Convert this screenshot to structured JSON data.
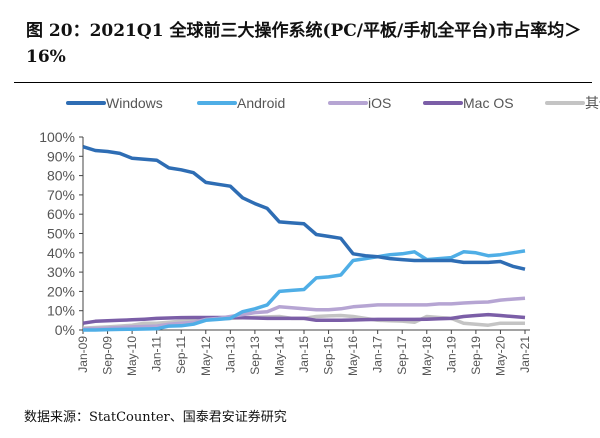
{
  "title": "图 20：2021Q1 全球前三大操作系统(PC/平板/手机全平台)市占率均＞16%",
  "source": "数据来源：StatCounter、国泰君安证券研究",
  "chart_data": {
    "type": "line",
    "title": "图 20：2021Q1 全球前三大操作系统(PC/平板/手机全平台)市占率均＞16%",
    "xlabel": "",
    "ylabel": "",
    "ylim": [
      0,
      100
    ],
    "yticks": [
      "0%",
      "10%",
      "20%",
      "30%",
      "40%",
      "50%",
      "60%",
      "70%",
      "80%",
      "90%",
      "100%"
    ],
    "xticks": [
      "Jan-09",
      "Sep-09",
      "May-10",
      "Jan-11",
      "Sep-11",
      "May-12",
      "Jan-13",
      "Sep-13",
      "May-14",
      "Jan-15",
      "Sep-15",
      "May-16",
      "Jan-17",
      "Sep-17",
      "May-18",
      "Jan-19",
      "Sep-19",
      "May-20",
      "Jan-21"
    ],
    "x": [
      "Jan-09",
      "May-09",
      "Sep-09",
      "Jan-10",
      "May-10",
      "Sep-10",
      "Jan-11",
      "May-11",
      "Sep-11",
      "Jan-12",
      "May-12",
      "Sep-12",
      "Jan-13",
      "May-13",
      "Sep-13",
      "Jan-14",
      "May-14",
      "Sep-14",
      "Jan-15",
      "May-15",
      "Sep-15",
      "Jan-16",
      "May-16",
      "Sep-16",
      "Jan-17",
      "May-17",
      "Sep-17",
      "Jan-18",
      "May-18",
      "Sep-18",
      "Jan-19",
      "May-19",
      "Sep-19",
      "Jan-20",
      "May-20",
      "Sep-20",
      "Jan-21"
    ],
    "legend": "top",
    "grid": false,
    "series": [
      {
        "name": "Windows",
        "color": "#2E6DB4",
        "values": [
          95,
          93,
          92.5,
          91.5,
          89,
          88.5,
          88,
          84,
          83,
          81.5,
          76.5,
          75.5,
          74.5,
          68.5,
          65.5,
          63,
          56,
          55.5,
          55,
          49.5,
          48.5,
          47.5,
          39.5,
          38.5,
          38,
          37,
          36.5,
          36,
          36,
          36,
          36,
          35,
          35,
          35,
          35.5,
          33,
          31.5
        ]
      },
      {
        "name": "Android",
        "color": "#4FAEE6",
        "values": [
          0,
          0,
          0.2,
          0.3,
          0.4,
          0.5,
          0.6,
          2,
          2.2,
          3,
          5,
          5.5,
          6,
          9.5,
          11,
          13,
          20,
          20.5,
          21,
          27,
          27.5,
          28.5,
          36,
          37,
          38,
          39,
          39.5,
          40.5,
          36.5,
          37,
          37.5,
          40.5,
          40,
          38.5,
          39,
          40,
          41
        ]
      },
      {
        "name": "iOS",
        "color": "#B6A5D3",
        "values": [
          0.5,
          0.8,
          1,
          1.3,
          1.6,
          1.8,
          2,
          3,
          3.5,
          4,
          5.5,
          6,
          7,
          8,
          9,
          9.5,
          12,
          11.5,
          11,
          10.5,
          10.5,
          11,
          12,
          12.5,
          13,
          13,
          13,
          13,
          13,
          13.5,
          13.5,
          14,
          14.3,
          14.5,
          15.5,
          16,
          16.5
        ]
      },
      {
        "name": "Mac OS",
        "color": "#7B5EA7",
        "values": [
          3.5,
          4.5,
          4.8,
          5,
          5.3,
          5.6,
          6,
          6.2,
          6.4,
          6.5,
          6.5,
          6.5,
          6.5,
          6.3,
          6.2,
          6,
          6,
          6,
          6,
          5,
          5,
          5,
          5.2,
          5.4,
          5.5,
          5.5,
          5.5,
          5.5,
          5.6,
          5.8,
          6,
          7,
          7.5,
          8,
          7.5,
          7,
          6.5
        ]
      },
      {
        "name": "其他",
        "color": "#C4C4C4",
        "values": [
          1,
          1.3,
          1.6,
          2,
          2.5,
          3.5,
          3.5,
          4,
          4.5,
          5,
          5.5,
          5.7,
          6,
          6.3,
          6.6,
          6.8,
          7,
          6,
          6,
          7,
          7.3,
          7.5,
          7,
          6,
          5,
          4.8,
          4.6,
          4,
          7,
          6.5,
          6,
          3.5,
          3,
          2.5,
          3.5,
          3.5,
          3.5
        ]
      }
    ]
  }
}
